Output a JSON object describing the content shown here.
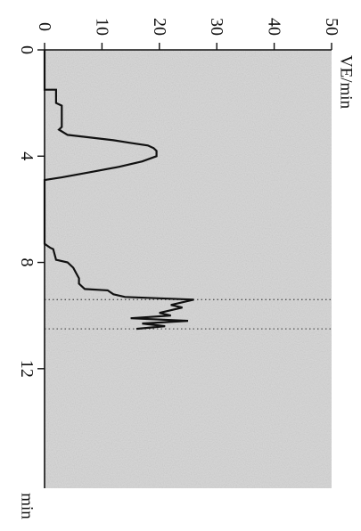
{
  "chart_data": {
    "type": "line",
    "orientation": "rotated-90-clockwise",
    "ylabel": "VE/min",
    "xlabel": "min",
    "xlim": [
      0,
      16.5
    ],
    "ylim": [
      0,
      50
    ],
    "x_ticks": [
      0,
      4,
      8,
      12
    ],
    "x_tick_labels": [
      "0",
      "4",
      "8",
      "12"
    ],
    "y_ticks": [
      0,
      10,
      20,
      30,
      40,
      50
    ],
    "y_tick_labels": [
      "0",
      "10",
      "20",
      "30",
      "40",
      "50"
    ],
    "plot_background": "#d9d9d9",
    "line_color": "#111111",
    "marker_line_color": "#555555",
    "vertical_markers": [
      9.4,
      10.5
    ],
    "series": [
      {
        "x": [
          0,
          1.5,
          1.5,
          2.0,
          2.1,
          2.9,
          3.0,
          3.2,
          3.3,
          3.4,
          3.5,
          3.6,
          3.7,
          3.8,
          4.0,
          4.2,
          4.4,
          4.6,
          4.8,
          4.9,
          7.3,
          7.45,
          7.5,
          7.9,
          8.0,
          8.2,
          8.4,
          8.6,
          8.8,
          9.0,
          9.05,
          9.2,
          9.3,
          9.4,
          9.6,
          9.7,
          9.9,
          10.0,
          10.1,
          10.2,
          10.3,
          10.4,
          10.5
        ],
        "y": [
          0,
          0,
          2,
          2,
          3,
          3,
          2.5,
          4,
          8,
          12,
          15,
          18,
          19,
          19.5,
          19.5,
          17,
          13,
          8,
          3,
          0,
          0,
          1,
          1.5,
          2,
          4,
          5,
          5.5,
          6,
          6,
          7,
          11,
          12,
          14,
          26,
          22,
          24,
          20,
          22,
          15,
          25,
          17,
          21,
          16
        ]
      }
    ]
  }
}
